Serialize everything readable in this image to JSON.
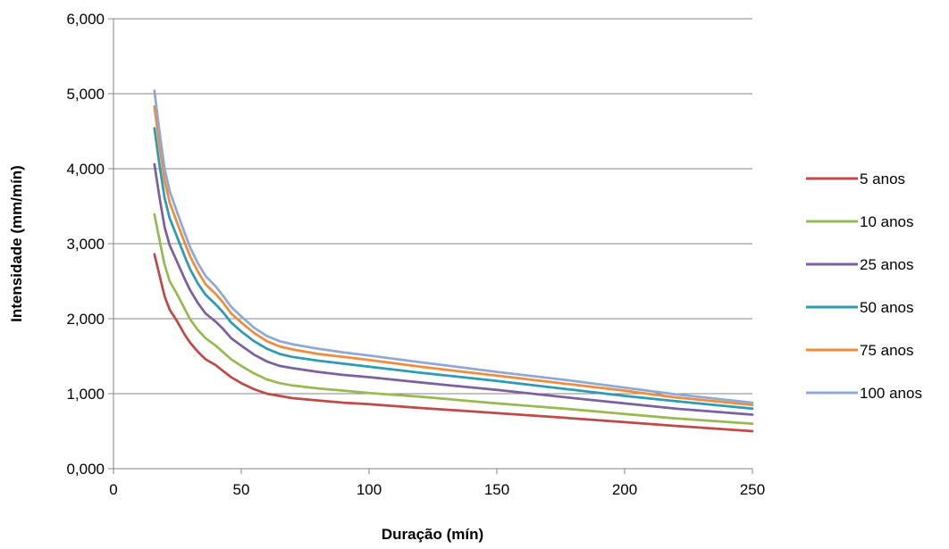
{
  "chart_data": {
    "type": "line",
    "title": "",
    "xlabel": "Duração (mín)",
    "ylabel": "Intensidade (mm/mín)",
    "xlim": [
      0,
      250
    ],
    "ylim": [
      0,
      6
    ],
    "x_ticks": [
      0,
      50,
      100,
      150,
      200,
      250
    ],
    "x_tick_labels": [
      "0",
      "50",
      "100",
      "150",
      "200",
      "250"
    ],
    "y_ticks": [
      0,
      1,
      2,
      3,
      4,
      5,
      6
    ],
    "y_tick_labels": [
      "0,000",
      "1,000",
      "2,000",
      "3,000",
      "4,000",
      "5,000",
      "6,000"
    ],
    "grid": "horizontal",
    "legend_position": "right",
    "x": [
      16,
      18,
      20,
      22,
      25,
      28,
      30,
      33,
      36,
      40,
      43,
      46,
      50,
      55,
      60,
      65,
      70,
      80,
      90,
      100,
      120,
      150,
      180,
      200,
      220,
      250
    ],
    "series": [
      {
        "name": "5 anos",
        "color": "#BE4B48",
        "values": [
          2.86,
          2.58,
          2.3,
          2.12,
          1.96,
          1.78,
          1.68,
          1.56,
          1.46,
          1.38,
          1.3,
          1.22,
          1.14,
          1.06,
          1.0,
          0.97,
          0.94,
          0.91,
          0.88,
          0.86,
          0.81,
          0.74,
          0.67,
          0.62,
          0.57,
          0.5
        ]
      },
      {
        "name": "10 anos",
        "color": "#98B954",
        "values": [
          3.39,
          3.05,
          2.72,
          2.5,
          2.32,
          2.12,
          1.99,
          1.85,
          1.74,
          1.64,
          1.55,
          1.46,
          1.37,
          1.27,
          1.19,
          1.14,
          1.11,
          1.07,
          1.04,
          1.01,
          0.96,
          0.87,
          0.79,
          0.73,
          0.67,
          0.6
        ]
      },
      {
        "name": "25 anos",
        "color": "#7D60A0",
        "values": [
          4.06,
          3.62,
          3.22,
          2.98,
          2.75,
          2.52,
          2.38,
          2.21,
          2.07,
          1.96,
          1.86,
          1.74,
          1.64,
          1.52,
          1.43,
          1.37,
          1.34,
          1.29,
          1.25,
          1.22,
          1.15,
          1.05,
          0.94,
          0.87,
          0.8,
          0.72
        ]
      },
      {
        "name": "50 anos",
        "color": "#2C9BB3",
        "values": [
          4.54,
          4.05,
          3.61,
          3.34,
          3.08,
          2.82,
          2.66,
          2.47,
          2.32,
          2.19,
          2.08,
          1.95,
          1.83,
          1.7,
          1.6,
          1.53,
          1.49,
          1.44,
          1.4,
          1.36,
          1.28,
          1.17,
          1.05,
          0.97,
          0.9,
          0.8
        ]
      },
      {
        "name": "75 anos",
        "color": "#F08C3C",
        "values": [
          4.83,
          4.31,
          3.84,
          3.55,
          3.27,
          3.0,
          2.83,
          2.63,
          2.46,
          2.33,
          2.21,
          2.07,
          1.95,
          1.81,
          1.7,
          1.63,
          1.59,
          1.53,
          1.49,
          1.45,
          1.36,
          1.24,
          1.12,
          1.04,
          0.95,
          0.85
        ]
      },
      {
        "name": "100 anos",
        "color": "#8FA9D6",
        "values": [
          5.04,
          4.49,
          4.0,
          3.7,
          3.41,
          3.13,
          2.95,
          2.74,
          2.57,
          2.43,
          2.3,
          2.16,
          2.03,
          1.88,
          1.77,
          1.7,
          1.66,
          1.6,
          1.55,
          1.51,
          1.42,
          1.29,
          1.17,
          1.08,
          0.99,
          0.88
        ]
      }
    ]
  }
}
